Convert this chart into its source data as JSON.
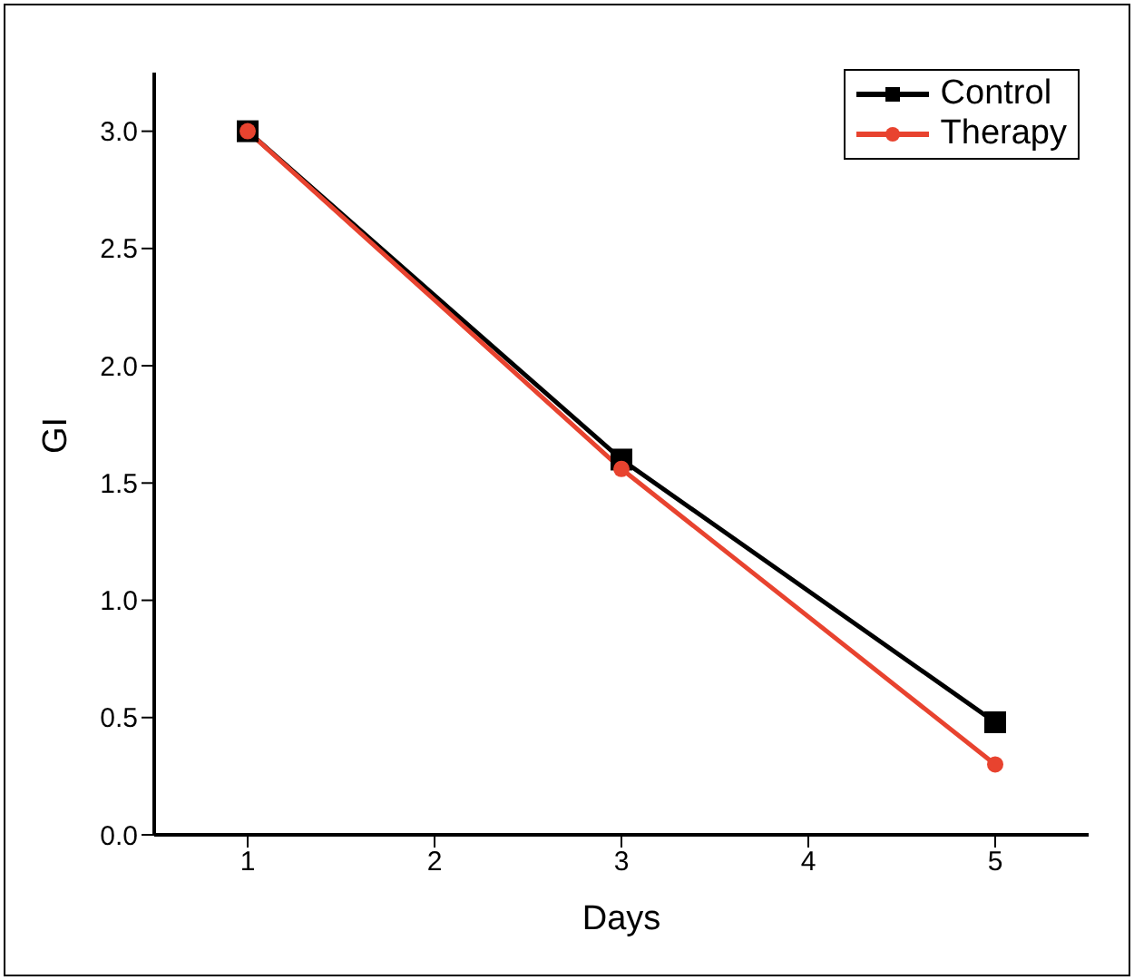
{
  "chart_data": {
    "type": "line",
    "xlabel": "Days",
    "ylabel": "GI",
    "x": [
      1,
      3,
      5
    ],
    "series": [
      {
        "name": "Control",
        "color": "#000000",
        "marker": "square",
        "values": [
          3.0,
          1.6,
          0.48
        ]
      },
      {
        "name": "Therapy",
        "color": "#e8432f",
        "marker": "circle",
        "values": [
          3.0,
          1.56,
          0.3
        ]
      }
    ],
    "xlim": [
      0.5,
      5.5
    ],
    "xticks": [
      1,
      2,
      3,
      4,
      5
    ],
    "ylim": [
      0,
      3.25
    ],
    "yticks": [
      {
        "value": 0,
        "label": "0.0"
      },
      {
        "value": 0.5,
        "label": "0.5"
      },
      {
        "value": 1,
        "label": "1.0"
      },
      {
        "value": 1.5,
        "label": "1.5"
      },
      {
        "value": 2,
        "label": "2.0"
      },
      {
        "value": 2.5,
        "label": "2.5"
      },
      {
        "value": 3,
        "label": "3.0"
      }
    ],
    "grid": false,
    "legend": "top right",
    "line_style": "solid"
  }
}
